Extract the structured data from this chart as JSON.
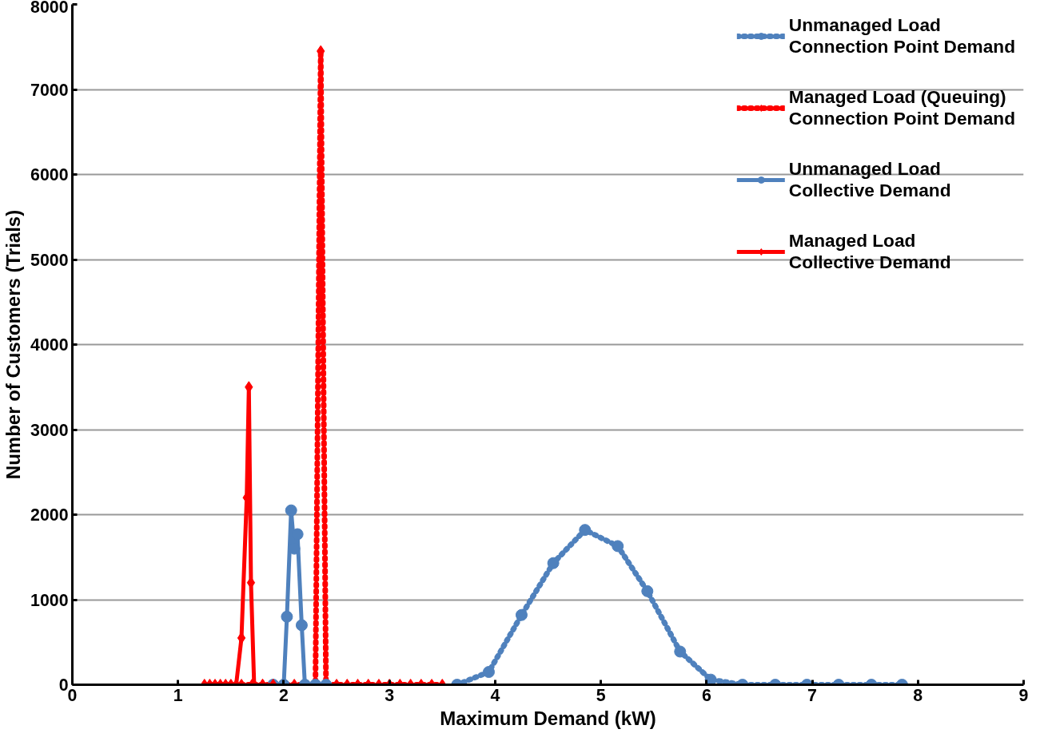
{
  "chart_data": {
    "type": "line",
    "xlabel": "Maximum Demand (kW)",
    "ylabel": "Number of Customers (Trials)",
    "xlim": [
      0,
      9
    ],
    "xticks": [
      0,
      1,
      2,
      3,
      4,
      5,
      6,
      7,
      8,
      9
    ],
    "ylim": [
      0,
      8000
    ],
    "yticks": [
      0,
      1000,
      2000,
      3000,
      4000,
      5000,
      6000,
      7000,
      8000
    ],
    "grid": "y",
    "legend": "top right",
    "series": [
      {
        "name": "Unmanaged Load\nConnection Point Demand",
        "color": "#4f81bd",
        "line_style": "dotted",
        "marker": "circle",
        "x": [
          3.64,
          3.94,
          4.25,
          4.55,
          4.85,
          5.16,
          5.44,
          5.75,
          6.04,
          6.34,
          6.65,
          6.95,
          7.25,
          7.56,
          7.85
        ],
        "values": [
          0,
          150,
          820,
          1430,
          1820,
          1630,
          1100,
          390,
          60,
          0,
          0,
          0,
          0,
          0,
          0
        ]
      },
      {
        "name": "Managed Load (Queuing)\nConnection Point Demand",
        "color": "#ff0000",
        "line_style": "dotted",
        "marker": "diamond",
        "x": [
          1.3,
          1.4,
          1.5,
          1.6,
          1.7,
          1.8,
          1.9,
          2.0,
          2.1,
          2.2,
          2.3,
          2.35,
          2.4,
          2.5,
          2.6,
          2.7,
          2.8,
          2.9,
          3.0,
          3.1,
          3.2,
          3.3,
          3.4,
          3.5
        ],
        "values": [
          0,
          0,
          0,
          0,
          0,
          0,
          0,
          0,
          0,
          0,
          0,
          7450,
          0,
          0,
          0,
          0,
          0,
          0,
          0,
          0,
          0,
          0,
          0,
          0
        ]
      },
      {
        "name": "Unmanaged Load\nCollective Demand",
        "color": "#4f81bd",
        "line_style": "solid",
        "marker": "circle",
        "x": [
          1.9,
          2.0,
          2.03,
          2.07,
          2.1,
          2.13,
          2.17,
          2.2,
          2.3,
          2.4
        ],
        "values": [
          0,
          0,
          800,
          2050,
          1600,
          1770,
          700,
          0,
          0,
          0
        ]
      },
      {
        "name": "Managed Load\nCollective Demand",
        "color": "#ff0000",
        "line_style": "solid",
        "marker": "diamond",
        "x": [
          1.25,
          1.35,
          1.45,
          1.55,
          1.6,
          1.65,
          1.67,
          1.69,
          1.72,
          1.8,
          1.9
        ],
        "values": [
          0,
          0,
          0,
          0,
          550,
          2200,
          3500,
          1200,
          0,
          0,
          0
        ]
      }
    ]
  }
}
